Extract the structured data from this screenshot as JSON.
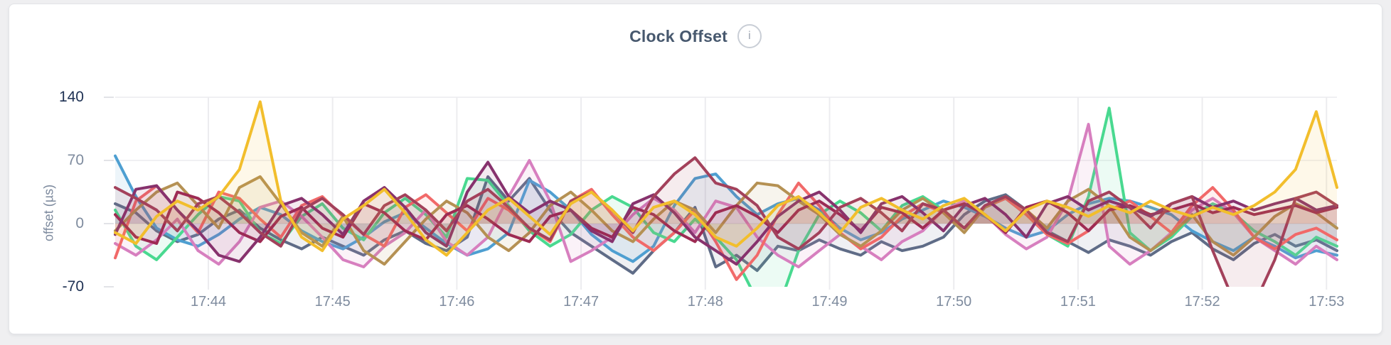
{
  "card": {
    "title": "Clock Offset",
    "info_icon": "i"
  },
  "chart_data": {
    "type": "line",
    "title": "Clock Offset",
    "xlabel": "",
    "ylabel": "offset (µs)",
    "ylim": [
      -70,
      140
    ],
    "grid": true,
    "legend": "none",
    "x_ticks": [
      "17:44",
      "17:45",
      "17:46",
      "17:47",
      "17:48",
      "17:49",
      "17:50",
      "17:51",
      "17:52",
      "17:53"
    ],
    "y_ticks": [
      {
        "label": "140",
        "value": 140,
        "strong": true
      },
      {
        "label": "70",
        "value": 70,
        "strong": false
      },
      {
        "label": "0",
        "value": 0,
        "strong": false
      },
      {
        "label": "-70",
        "value": -70,
        "strong": true
      }
    ],
    "sample_interval_seconds": 10,
    "x_start_offset_minutes_before_1744": 0.75,
    "colors": {
      "accent_title": "#47586e",
      "axis_strong": "#1e3153",
      "axis_muted": "#7e8b9e",
      "gridline": "#ececef"
    },
    "series": [
      {
        "name": "slate",
        "color": "#5F6C87",
        "values": [
          22,
          12,
          -8,
          -20,
          -12,
          5,
          15,
          -5,
          -18,
          -28,
          -15,
          -25,
          -35,
          -18,
          -8,
          -22,
          -30,
          -15,
          52,
          25,
          50,
          15,
          -10,
          -25,
          -40,
          -55,
          -30,
          -10,
          18,
          -48,
          -35,
          -52,
          -25,
          -30,
          -18,
          -28,
          -35,
          -20,
          -30,
          -25,
          -15,
          10,
          25,
          32,
          15,
          -8,
          -20,
          -32,
          -18,
          -25,
          -35,
          -20,
          -10,
          -28,
          -40,
          -22,
          -12,
          -25,
          -18,
          -30
        ]
      },
      {
        "name": "blue",
        "color": "#4E9FD1",
        "values": [
          75,
          30,
          -5,
          -18,
          -25,
          -12,
          5,
          18,
          10,
          -8,
          -20,
          -28,
          -15,
          2,
          12,
          -5,
          -22,
          -35,
          -28,
          -10,
          48,
          35,
          15,
          -12,
          -30,
          -42,
          -25,
          20,
          50,
          55,
          30,
          10,
          22,
          28,
          15,
          -5,
          -18,
          -10,
          5,
          15,
          25,
          18,
          8,
          -5,
          -15,
          -8,
          10,
          22,
          28,
          25,
          18,
          10,
          -8,
          -20,
          -30,
          -15,
          -25,
          -38,
          -30,
          -35
        ]
      },
      {
        "name": "green",
        "color": "#49D990",
        "values": [
          15,
          -25,
          -40,
          -15,
          10,
          30,
          25,
          -10,
          -22,
          8,
          22,
          -5,
          -18,
          12,
          28,
          10,
          -15,
          50,
          48,
          20,
          -8,
          -25,
          -12,
          15,
          30,
          18,
          -10,
          -20,
          5,
          -15,
          -40,
          -85,
          -95,
          -30,
          10,
          25,
          12,
          -8,
          20,
          30,
          15,
          -5,
          18,
          28,
          10,
          -12,
          -25,
          30,
          128,
          -10,
          -30,
          -15,
          8,
          22,
          12,
          -8,
          -20,
          -35,
          -15,
          -25
        ]
      },
      {
        "name": "orchid",
        "color": "#D77FBF",
        "values": [
          -22,
          -35,
          -18,
          5,
          -30,
          -45,
          -20,
          18,
          25,
          8,
          -15,
          -40,
          -48,
          -25,
          -10,
          15,
          -20,
          -35,
          -15,
          30,
          70,
          25,
          -42,
          -30,
          -15,
          10,
          28,
          15,
          -10,
          25,
          18,
          -15,
          -35,
          -48,
          -30,
          -12,
          -25,
          -40,
          -20,
          -8,
          15,
          25,
          10,
          -12,
          -28,
          -15,
          25,
          110,
          -25,
          -45,
          -30,
          -10,
          15,
          28,
          12,
          -15,
          -30,
          -45,
          -25,
          -40
        ]
      },
      {
        "name": "salmon",
        "color": "#F16969",
        "values": [
          -38,
          25,
          42,
          15,
          -10,
          35,
          28,
          5,
          -15,
          20,
          30,
          8,
          -12,
          -25,
          18,
          32,
          12,
          -8,
          28,
          15,
          -5,
          -20,
          25,
          38,
          10,
          -15,
          -30,
          -10,
          15,
          -20,
          -62,
          -35,
          10,
          45,
          20,
          -10,
          -28,
          -15,
          8,
          22,
          12,
          -5,
          18,
          28,
          10,
          -12,
          -22,
          -8,
          15,
          25,
          8,
          -10,
          20,
          40,
          15,
          -15,
          -28,
          -12,
          -5,
          -18
        ]
      },
      {
        "name": "khaki",
        "color": "#B59153",
        "values": [
          -8,
          15,
          35,
          45,
          20,
          -5,
          40,
          52,
          22,
          -10,
          -25,
          8,
          -30,
          -45,
          -20,
          5,
          25,
          12,
          -15,
          -30,
          -10,
          20,
          35,
          15,
          -8,
          -20,
          5,
          25,
          15,
          -10,
          20,
          45,
          42,
          25,
          10,
          -12,
          -25,
          -8,
          15,
          28,
          12,
          -10,
          18,
          30,
          15,
          -5,
          25,
          38,
          20,
          -15,
          -30,
          -12,
          10,
          -20,
          -35,
          -15,
          8,
          22,
          12,
          -5
        ]
      },
      {
        "name": "crimson",
        "color": "#9E2B53",
        "values": [
          10,
          -15,
          -22,
          35,
          28,
          12,
          -10,
          -20,
          8,
          18,
          -5,
          -15,
          22,
          12,
          -8,
          -18,
          10,
          20,
          5,
          -12,
          -20,
          8,
          15,
          -5,
          -15,
          18,
          10,
          -8,
          -20,
          12,
          20,
          8,
          -10,
          15,
          25,
          10,
          -8,
          18,
          12,
          -5,
          15,
          22,
          10,
          -10,
          18,
          25,
          12,
          -8,
          15,
          20,
          10,
          15,
          22,
          12,
          18,
          10,
          15,
          20,
          12,
          18
        ]
      },
      {
        "name": "plum",
        "color": "#87326D",
        "values": [
          -12,
          38,
          42,
          15,
          -8,
          -35,
          -42,
          -15,
          20,
          28,
          10,
          -12,
          25,
          40,
          18,
          -10,
          -25,
          35,
          68,
          30,
          12,
          25,
          15,
          -8,
          -20,
          22,
          32,
          12,
          -15,
          -30,
          -45,
          -20,
          8,
          25,
          35,
          15,
          -10,
          22,
          30,
          12,
          -8,
          20,
          28,
          10,
          -15,
          22,
          30,
          15,
          25,
          18,
          8,
          22,
          30,
          18,
          25,
          15,
          22,
          28,
          15,
          20
        ]
      },
      {
        "name": "maroon",
        "color": "#A3415B",
        "values": [
          40,
          28,
          15,
          -8,
          22,
          30,
          12,
          -10,
          -25,
          15,
          28,
          10,
          -12,
          20,
          32,
          15,
          -8,
          25,
          38,
          18,
          -5,
          -18,
          25,
          35,
          15,
          -10,
          30,
          55,
          73,
          45,
          38,
          20,
          -15,
          -28,
          -10,
          18,
          28,
          12,
          -8,
          22,
          15,
          -5,
          20,
          30,
          15,
          -10,
          -20,
          25,
          35,
          18,
          -5,
          22,
          30,
          -30,
          -85,
          -90,
          -40,
          28,
          35,
          20
        ]
      },
      {
        "name": "gold",
        "color": "#F2BE2C",
        "values": [
          -10,
          -22,
          8,
          25,
          15,
          30,
          60,
          135,
          25,
          -15,
          -30,
          5,
          20,
          38,
          12,
          -18,
          -35,
          -10,
          15,
          28,
          8,
          -12,
          22,
          35,
          15,
          -8,
          18,
          25,
          10,
          -15,
          -25,
          -5,
          20,
          30,
          12,
          -10,
          18,
          28,
          15,
          5,
          20,
          28,
          10,
          -8,
          15,
          25,
          18,
          8,
          20,
          12,
          25,
          15,
          8,
          18,
          10,
          20,
          35,
          60,
          124,
          40
        ]
      }
    ]
  }
}
